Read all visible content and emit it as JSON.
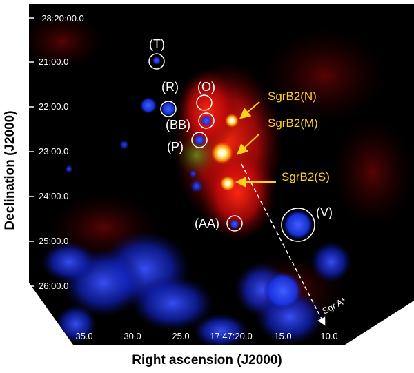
{
  "axes": {
    "xlabel": "Right ascension (J2000)",
    "ylabel": "Declination (J2000)",
    "xticks": [
      "35.0",
      "30.0",
      "25.0",
      "17:47:20.0",
      "15.0",
      "10.0"
    ],
    "yticks": [
      "-28:20:00.0",
      "21:00.0",
      "22:00.0",
      "23:00.0",
      "24:00.0",
      "25:00.0",
      "26:00.0"
    ]
  },
  "sources": [
    {
      "id": "T",
      "label": "(T)"
    },
    {
      "id": "R",
      "label": "(R)"
    },
    {
      "id": "O",
      "label": "(O)"
    },
    {
      "id": "BB",
      "label": "(BB)"
    },
    {
      "id": "P",
      "label": "(P)"
    },
    {
      "id": "AA",
      "label": "(AA)"
    },
    {
      "id": "V",
      "label": "(V)"
    }
  ],
  "sgrb2": [
    {
      "id": "N",
      "label": "SgrB2(N)"
    },
    {
      "id": "M",
      "label": "SgrB2(M)"
    },
    {
      "id": "S",
      "label": "SgrB2(S)"
    }
  ],
  "sgra_label": "Sgr A*",
  "colors": {
    "background": "#000000",
    "emission_red": "#e01010",
    "emission_blue": "#1a2ee0",
    "annotation_yellow": "#ffd21a",
    "annotation_white": "#ffffff"
  }
}
